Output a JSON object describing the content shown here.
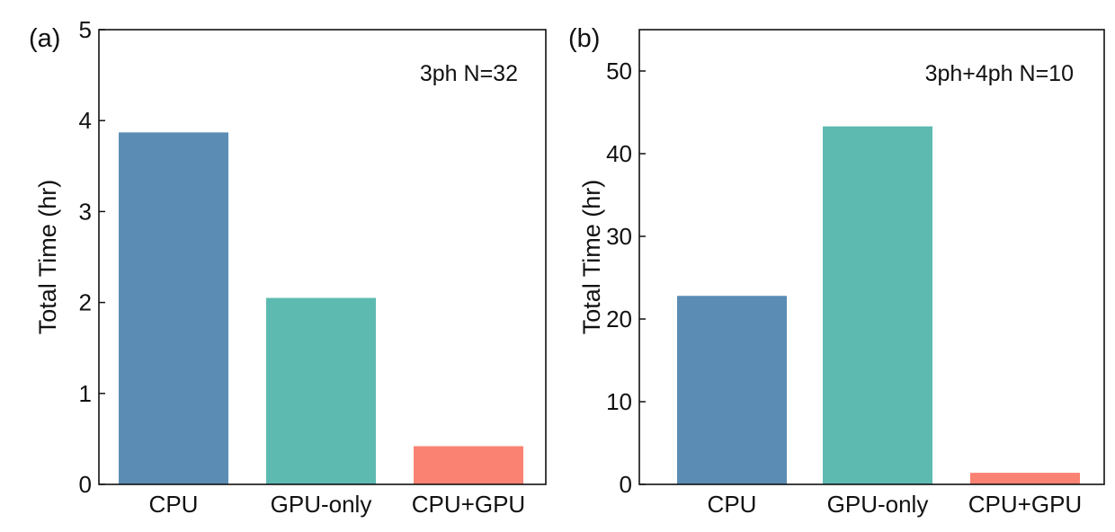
{
  "chart_data": [
    {
      "type": "bar",
      "panel_label": "(a)",
      "annotation": "3ph N=32",
      "categories": [
        "CPU",
        "GPU-only",
        "CPU+GPU"
      ],
      "values": [
        3.87,
        2.05,
        0.42
      ],
      "colors": [
        "#5b8db4",
        "#5dbab1",
        "#fa8272"
      ],
      "ylabel": "Total Time (hr)",
      "xlabel": "",
      "ylim": [
        0,
        5
      ],
      "yticks": [
        0,
        1,
        2,
        3,
        4,
        5
      ],
      "grid": false,
      "legend": "none"
    },
    {
      "type": "bar",
      "panel_label": "(b)",
      "annotation": "3ph+4ph N=10",
      "categories": [
        "CPU",
        "GPU-only",
        "CPU+GPU"
      ],
      "values": [
        22.8,
        43.3,
        1.4
      ],
      "colors": [
        "#5b8db4",
        "#5dbab1",
        "#fa8272"
      ],
      "ylabel": "Total Time (hr)",
      "xlabel": "",
      "ylim": [
        0,
        55
      ],
      "yticks": [
        0,
        10,
        20,
        30,
        40,
        50
      ],
      "grid": false,
      "legend": "none"
    }
  ]
}
